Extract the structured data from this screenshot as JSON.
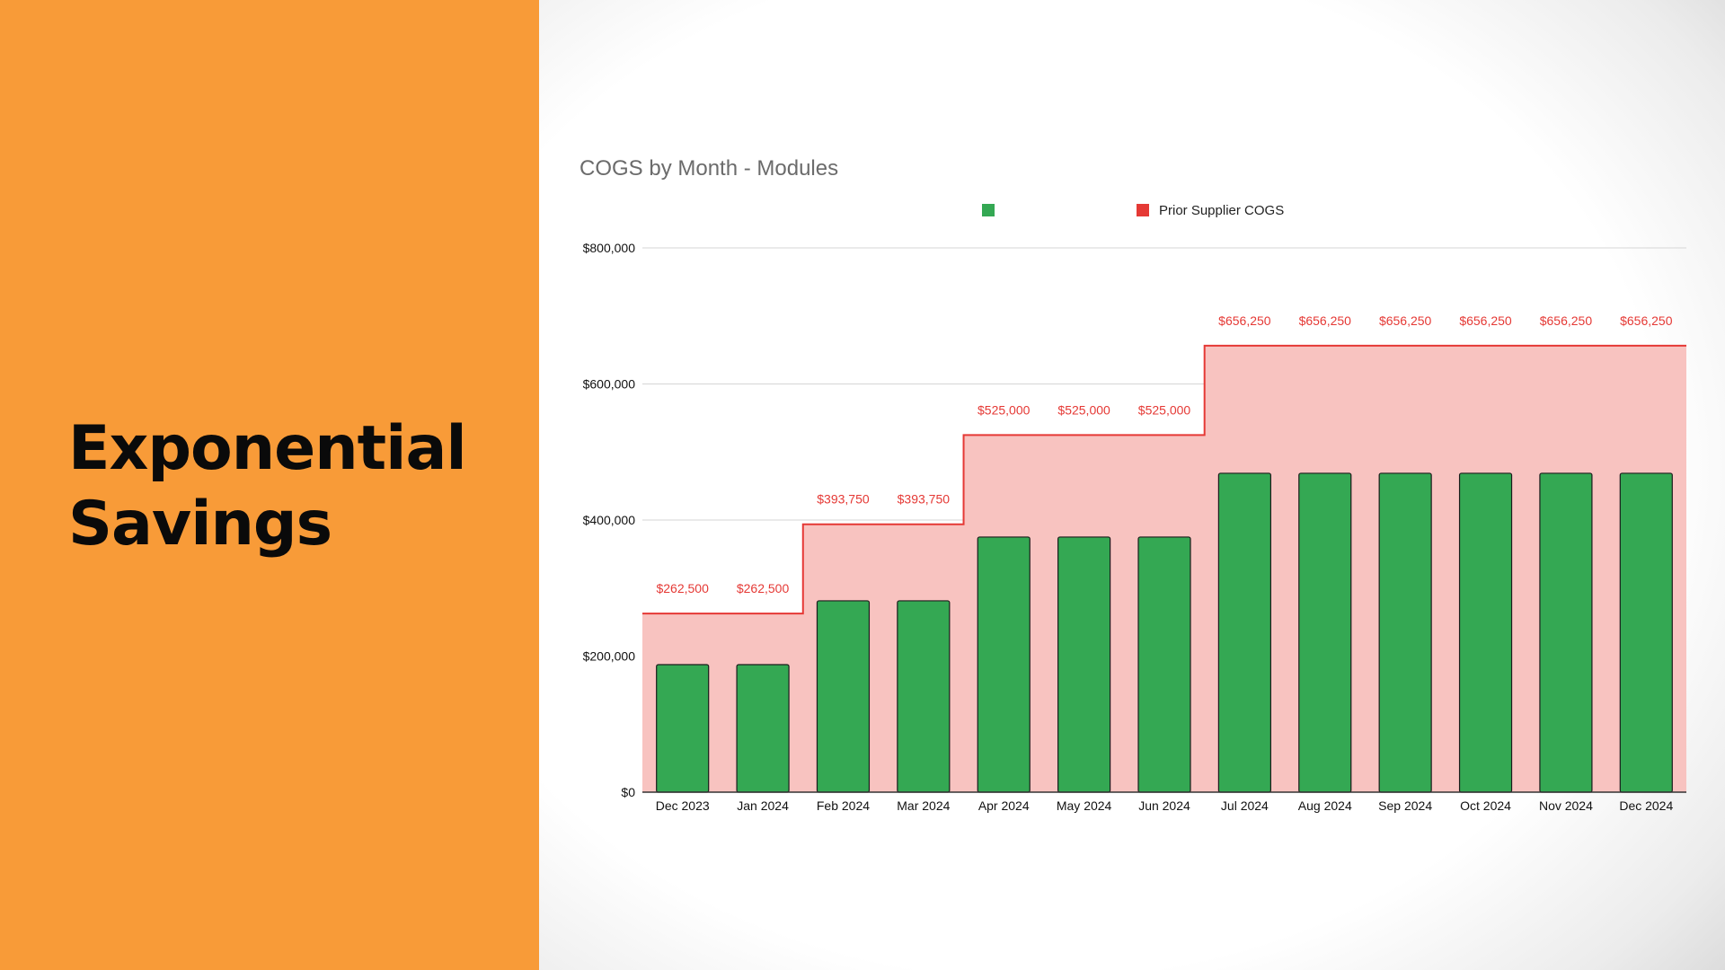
{
  "slide": {
    "title_line1": "Exponential",
    "title_line2": "Savings"
  },
  "colors": {
    "left_panel": "#f89b38",
    "bar_fill": "#34a853",
    "bar_stroke": "#1b1b1b",
    "area_fill": "#f8c3c0",
    "area_line": "#e53935",
    "data_label": "#e53935"
  },
  "chart_data": {
    "type": "bar",
    "title": "COGS by Month - Modules",
    "categories": [
      "Dec 2023",
      "Jan 2024",
      "Feb 2024",
      "Mar 2024",
      "Apr 2024",
      "May 2024",
      "Jun 2024",
      "Jul 2024",
      "Aug 2024",
      "Sep 2024",
      "Oct 2024",
      "Nov 2024",
      "Dec 2024"
    ],
    "series": [
      {
        "name": "",
        "type": "bar",
        "color": "#34a853",
        "values": [
          187500,
          187500,
          281250,
          281250,
          375000,
          375000,
          375000,
          468750,
          468750,
          468750,
          468750,
          468750,
          468750
        ]
      },
      {
        "name": "Prior Supplier COGS",
        "type": "stepped-area",
        "color": "#e53935",
        "values": [
          262500,
          262500,
          393750,
          393750,
          525000,
          525000,
          525000,
          656250,
          656250,
          656250,
          656250,
          656250,
          656250
        ],
        "data_labels": [
          "$262,500",
          "$262,500",
          "$393,750",
          "$393,750",
          "$525,000",
          "$525,000",
          "$525,000",
          "$656,250",
          "$656,250",
          "$656,250",
          "$656,250",
          "$656,250",
          "$656,250"
        ]
      }
    ],
    "ylim": [
      0,
      800000
    ],
    "yticks": [
      {
        "value": 0,
        "label": "$0"
      },
      {
        "value": 200000,
        "label": "$200,000"
      },
      {
        "value": 400000,
        "label": "$400,000"
      },
      {
        "value": 600000,
        "label": "$600,000"
      },
      {
        "value": 800000,
        "label": "$800,000"
      }
    ],
    "grid": true,
    "legend_position": "top"
  }
}
